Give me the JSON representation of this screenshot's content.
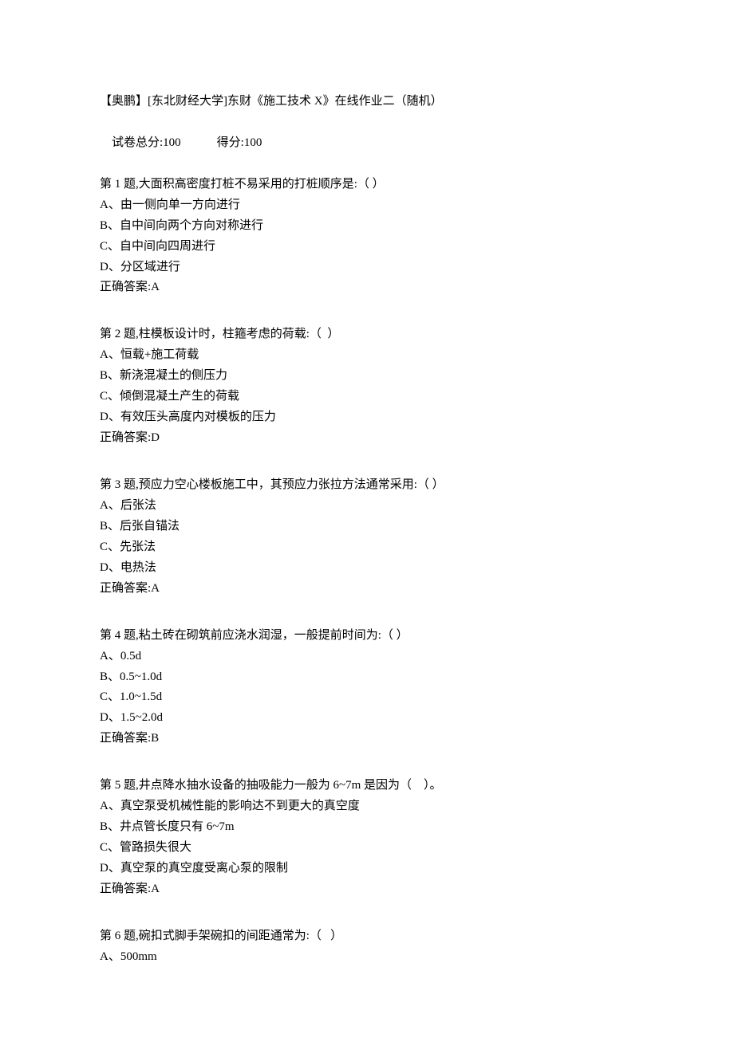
{
  "header": {
    "title": "【奥鹏】[东北财经大学]东财《施工技术 X》在线作业二（随机）",
    "total_label": "试卷总分:100",
    "score_label": "得分:100"
  },
  "questions": [
    {
      "stem": "第 1 题,大面积高密度打桩不易采用的打桩顺序是:（ ）",
      "options": [
        "A、由一侧向单一方向进行",
        "B、自中间向两个方向对称进行",
        "C、自中间向四周进行",
        "D、分区域进行"
      ],
      "answer": "正确答案:A"
    },
    {
      "stem": "第 2 题,柱模板设计时，柱箍考虑的荷载:（  ）",
      "options": [
        "A、恒载+施工荷载",
        "B、新浇混凝土的侧压力",
        "C、倾倒混凝土产生的荷载",
        "D、有效压头高度内对模板的压力"
      ],
      "answer": "正确答案:D"
    },
    {
      "stem": "第 3 题,预应力空心楼板施工中，其预应力张拉方法通常采用:（ ）",
      "options": [
        "A、后张法",
        "B、后张自锚法",
        "C、先张法",
        "D、电热法"
      ],
      "answer": "正确答案:A"
    },
    {
      "stem": "第 4 题,粘土砖在砌筑前应浇水润湿，一般提前时间为:（ ）",
      "options": [
        "A、0.5d",
        "B、0.5~1.0d",
        "C、1.0~1.5d",
        "D、1.5~2.0d"
      ],
      "answer": "正确答案:B"
    },
    {
      "stem": "第 5 题,井点降水抽水设备的抽吸能力一般为 6~7m 是因为（    ）。",
      "options": [
        "A、真空泵受机械性能的影响达不到更大的真空度",
        "B、井点管长度只有 6~7m",
        "C、管路损失很大",
        "D、真空泵的真空度受离心泵的限制"
      ],
      "answer": "正确答案:A"
    },
    {
      "stem": "第 6 题,碗扣式脚手架碗扣的间距通常为:（   ）",
      "options": [
        "A、500mm"
      ],
      "answer": null
    }
  ]
}
